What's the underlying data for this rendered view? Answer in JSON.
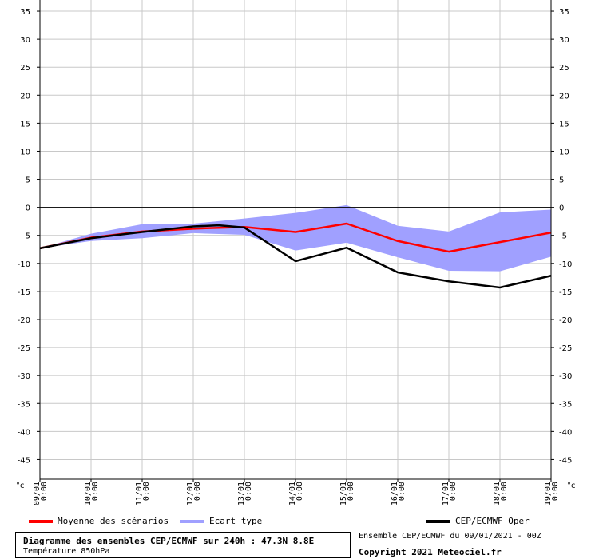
{
  "chart_data": {
    "type": "line",
    "title": "Diagramme des ensembles CEP/ECMWF sur 240h : 47.3N 8.8E",
    "subtitle": "Température 850hPa",
    "unit_label": "°c",
    "ylim": [
      -48.5,
      37
    ],
    "yticks": [
      35,
      30,
      25,
      20,
      15,
      10,
      5,
      0,
      -5,
      -10,
      -15,
      -20,
      -25,
      -30,
      -35,
      -40,
      -45
    ],
    "x_labels": [
      {
        "date": "09/01",
        "time": "0:00"
      },
      {
        "date": "10/01",
        "time": "0:00"
      },
      {
        "date": "11/01",
        "time": "0:00"
      },
      {
        "date": "12/01",
        "time": "0:00"
      },
      {
        "date": "13/01",
        "time": "0:00"
      },
      {
        "date": "14/01",
        "time": "0:00"
      },
      {
        "date": "15/01",
        "time": "0:00"
      },
      {
        "date": "16/01",
        "time": "0:00"
      },
      {
        "date": "17/01",
        "time": "0:00"
      },
      {
        "date": "18/01",
        "time": "0:00"
      },
      {
        "date": "19/01",
        "time": "0:00"
      }
    ],
    "grid": true,
    "series": [
      {
        "name": "Ecart type",
        "kind": "band",
        "color": "#a0a0ff",
        "upper": [
          [
            0,
            -7.3
          ],
          [
            1,
            -4.7
          ],
          [
            2,
            -3.0
          ],
          [
            3,
            -2.9
          ],
          [
            4,
            -2.0
          ],
          [
            5,
            -1.0
          ],
          [
            6,
            0.4
          ],
          [
            7,
            -3.3
          ],
          [
            8,
            -4.3
          ],
          [
            9,
            -0.9
          ],
          [
            10,
            -0.4
          ]
        ],
        "lower": [
          [
            0,
            -7.3
          ],
          [
            1,
            -6.0
          ],
          [
            2,
            -5.5
          ],
          [
            3,
            -4.6
          ],
          [
            4,
            -4.9
          ],
          [
            5,
            -7.7
          ],
          [
            6,
            -6.3
          ],
          [
            7,
            -8.9
          ],
          [
            8,
            -11.3
          ],
          [
            9,
            -11.4
          ],
          [
            10,
            -8.8
          ]
        ]
      },
      {
        "name": "Moyenne des scénarios",
        "kind": "line",
        "color": "#ff0000",
        "points": [
          [
            0,
            -7.3
          ],
          [
            1,
            -5.4
          ],
          [
            2,
            -4.3
          ],
          [
            3,
            -3.8
          ],
          [
            4,
            -3.5
          ],
          [
            5,
            -4.4
          ],
          [
            6,
            -2.9
          ],
          [
            7,
            -6.0
          ],
          [
            8,
            -7.9
          ],
          [
            9,
            -6.2
          ],
          [
            10,
            -4.5
          ]
        ]
      },
      {
        "name": "CEP/ECMWF Oper",
        "kind": "line",
        "color": "#000000",
        "points": [
          [
            0,
            -7.3
          ],
          [
            1,
            -5.5
          ],
          [
            2,
            -4.4
          ],
          [
            3,
            -3.4
          ],
          [
            3.5,
            -3.2
          ],
          [
            4,
            -3.6
          ],
          [
            5,
            -9.6
          ],
          [
            6,
            -7.2
          ],
          [
            7,
            -11.6
          ],
          [
            8,
            -13.2
          ],
          [
            9,
            -14.3
          ],
          [
            10,
            -12.2
          ]
        ]
      }
    ]
  },
  "legend": {
    "mean_label": "Moyenne des scénarios",
    "spread_label": "Ecart type",
    "oper_label": "CEP/ECMWF Oper"
  },
  "footer": {
    "title": "Diagramme des ensembles CEP/ECMWF sur 240h : 47.3N 8.8E",
    "subtitle": "Température 850hPa",
    "run_info": "Ensemble CEP/ECMWF du 09/01/2021 - 00Z",
    "copyright": "Copyright 2021 Meteociel.fr"
  }
}
